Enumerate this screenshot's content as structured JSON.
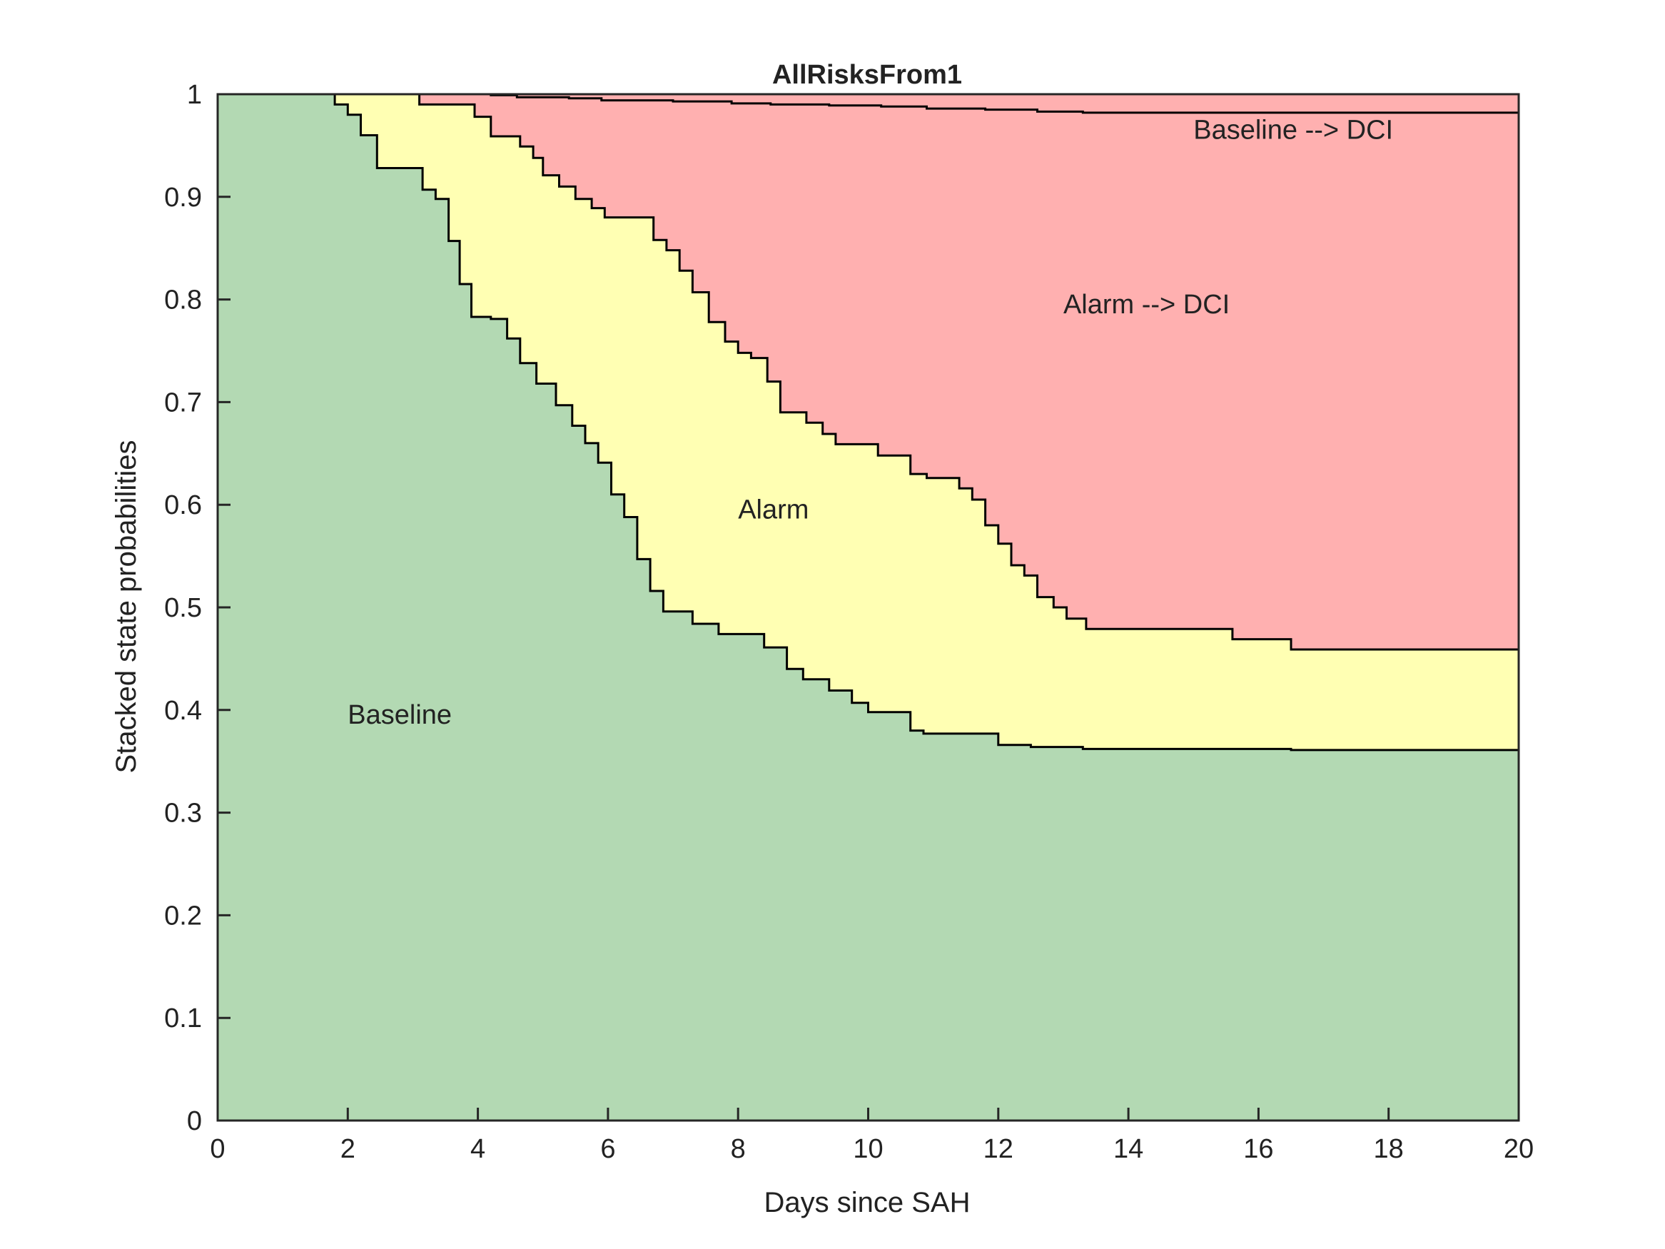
{
  "chart_data": {
    "type": "area",
    "stacked": true,
    "step": true,
    "title": "AllRisksFrom1",
    "xlabel": "Days since SAH",
    "ylabel": "Stacked state probabilities",
    "xlim": [
      0,
      20
    ],
    "ylim": [
      0,
      1
    ],
    "xticks": [
      0,
      2,
      4,
      6,
      8,
      10,
      12,
      14,
      16,
      18,
      20
    ],
    "yticks": [
      0,
      0.1,
      0.2,
      0.3,
      0.4,
      0.5,
      0.6,
      0.7,
      0.8,
      0.9,
      1
    ],
    "grid": false,
    "legend": "none",
    "colors": {
      "baseline": "#b3d9b3",
      "alarm": "#ffffb3",
      "alarm_to_dci": "#ffb0b0",
      "baseline_to_dci": "#ffb0b0",
      "boundary": "#000000"
    },
    "series": [
      {
        "name": "Baseline",
        "label_at": [
          2.0,
          0.395
        ],
        "upper_boundary": [
          [
            0,
            1.0
          ],
          [
            1.8,
            0.99
          ],
          [
            2.0,
            0.98
          ],
          [
            2.2,
            0.96
          ],
          [
            2.45,
            0.928
          ],
          [
            3.15,
            0.907
          ],
          [
            3.35,
            0.898
          ],
          [
            3.55,
            0.857
          ],
          [
            3.72,
            0.815
          ],
          [
            3.9,
            0.783
          ],
          [
            4.2,
            0.781
          ],
          [
            4.45,
            0.762
          ],
          [
            4.65,
            0.738
          ],
          [
            4.9,
            0.718
          ],
          [
            5.2,
            0.697
          ],
          [
            5.45,
            0.677
          ],
          [
            5.65,
            0.66
          ],
          [
            5.85,
            0.641
          ],
          [
            6.05,
            0.61
          ],
          [
            6.25,
            0.588
          ],
          [
            6.45,
            0.547
          ],
          [
            6.65,
            0.516
          ],
          [
            6.85,
            0.496
          ],
          [
            7.3,
            0.484
          ],
          [
            7.7,
            0.474
          ],
          [
            8.4,
            0.461
          ],
          [
            8.75,
            0.44
          ],
          [
            9.0,
            0.43
          ],
          [
            9.4,
            0.419
          ],
          [
            9.75,
            0.407
          ],
          [
            10.0,
            0.398
          ],
          [
            10.65,
            0.38
          ],
          [
            10.85,
            0.377
          ],
          [
            12.0,
            0.366
          ],
          [
            12.5,
            0.364
          ],
          [
            13.3,
            0.362
          ],
          [
            15.0,
            0.362
          ],
          [
            16.5,
            0.361
          ],
          [
            20,
            0.361
          ]
        ]
      },
      {
        "name": "Alarm",
        "label_at": [
          8.0,
          0.595
        ],
        "upper_boundary": [
          [
            0,
            1.0
          ],
          [
            3.1,
            0.99
          ],
          [
            3.6,
            0.99
          ],
          [
            3.95,
            0.978
          ],
          [
            4.2,
            0.959
          ],
          [
            4.65,
            0.949
          ],
          [
            4.85,
            0.938
          ],
          [
            5.0,
            0.921
          ],
          [
            5.25,
            0.91
          ],
          [
            5.5,
            0.898
          ],
          [
            5.75,
            0.889
          ],
          [
            5.95,
            0.88
          ],
          [
            6.7,
            0.858
          ],
          [
            6.9,
            0.848
          ],
          [
            7.1,
            0.828
          ],
          [
            7.3,
            0.807
          ],
          [
            7.55,
            0.778
          ],
          [
            7.8,
            0.759
          ],
          [
            8.0,
            0.748
          ],
          [
            8.2,
            0.743
          ],
          [
            8.45,
            0.72
          ],
          [
            8.65,
            0.69
          ],
          [
            9.05,
            0.68
          ],
          [
            9.3,
            0.669
          ],
          [
            9.5,
            0.659
          ],
          [
            10.15,
            0.648
          ],
          [
            10.65,
            0.63
          ],
          [
            10.9,
            0.626
          ],
          [
            11.4,
            0.616
          ],
          [
            11.6,
            0.605
          ],
          [
            11.8,
            0.58
          ],
          [
            12.0,
            0.562
          ],
          [
            12.2,
            0.541
          ],
          [
            12.4,
            0.531
          ],
          [
            12.6,
            0.51
          ],
          [
            12.85,
            0.5
          ],
          [
            13.05,
            0.489
          ],
          [
            13.35,
            0.479
          ],
          [
            15.6,
            0.469
          ],
          [
            16.5,
            0.459
          ],
          [
            20,
            0.459
          ]
        ]
      },
      {
        "name": "Alarm --> DCI",
        "label_at": [
          13.0,
          0.795
        ],
        "upper_boundary": [
          [
            0,
            1.0
          ],
          [
            4.2,
            0.999
          ],
          [
            4.6,
            0.997
          ],
          [
            5.4,
            0.996
          ],
          [
            5.9,
            0.994
          ],
          [
            7.0,
            0.993
          ],
          [
            7.9,
            0.991
          ],
          [
            8.5,
            0.99
          ],
          [
            9.4,
            0.989
          ],
          [
            10.2,
            0.988
          ],
          [
            10.9,
            0.986
          ],
          [
            11.8,
            0.985
          ],
          [
            12.6,
            0.983
          ],
          [
            13.3,
            0.982
          ],
          [
            20,
            0.982
          ]
        ]
      },
      {
        "name": "Baseline --> DCI",
        "label_at": [
          15.0,
          0.965
        ],
        "upper_boundary": [
          [
            0,
            1.0
          ],
          [
            20,
            1.0
          ]
        ]
      }
    ]
  }
}
